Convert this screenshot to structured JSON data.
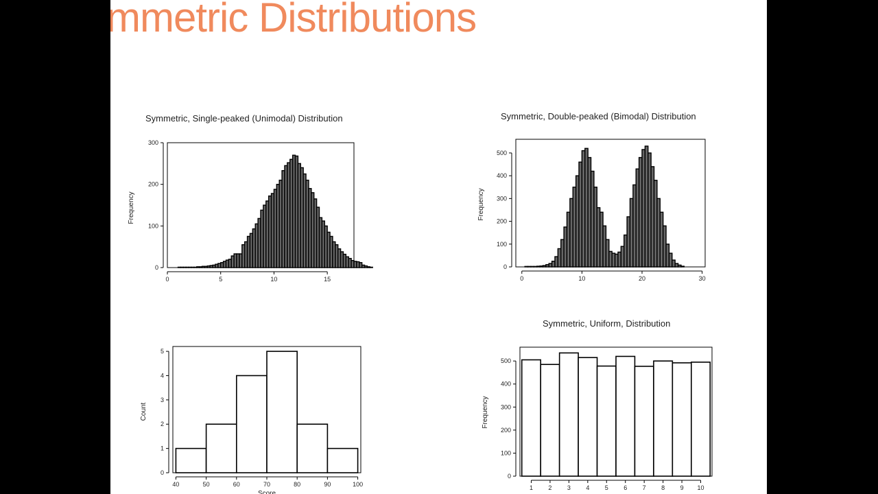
{
  "slide": {
    "title": "mmetric Distributions"
  },
  "chart_data": [
    {
      "type": "bar",
      "id": "unimodal",
      "title": "Symmetric, Single-peaked (Unimodal) Distribution",
      "xlabel": "",
      "ylabel": "Frequency",
      "xlim": [
        0,
        17.5
      ],
      "ylim": [
        0,
        300
      ],
      "xticks": [
        0,
        5,
        10,
        15
      ],
      "yticks": [
        0,
        100,
        200,
        300
      ],
      "bin_start": 1.0,
      "bin_width": 0.25,
      "fill": "#666666",
      "values": [
        1,
        1,
        1,
        1,
        1,
        1,
        1,
        2,
        2,
        3,
        3,
        4,
        5,
        6,
        8,
        10,
        12,
        15,
        18,
        20,
        28,
        33,
        33,
        33,
        55,
        62,
        75,
        82,
        93,
        105,
        118,
        138,
        150,
        160,
        172,
        178,
        188,
        200,
        210,
        233,
        245,
        252,
        260,
        270,
        268,
        250,
        240,
        225,
        210,
        190,
        180,
        165,
        145,
        120,
        112,
        100,
        85,
        75,
        62,
        55,
        45,
        38,
        32,
        26,
        22,
        17,
        15,
        14,
        12,
        6,
        4,
        2,
        1
      ]
    },
    {
      "type": "bar",
      "id": "bimodal",
      "title": "Symmetric, Double-peaked (Bimodal) Distribution",
      "xlabel": "",
      "ylabel": "Frequency",
      "xlim": [
        -1,
        30.5
      ],
      "ylim": [
        0,
        560
      ],
      "xticks": [
        0,
        10,
        20,
        30
      ],
      "yticks": [
        0,
        100,
        200,
        300,
        400,
        500
      ],
      "bin_start": 0.5,
      "bin_width": 0.5,
      "fill": "#666666",
      "values": [
        2,
        2,
        2,
        2,
        3,
        4,
        6,
        10,
        15,
        25,
        45,
        80,
        120,
        175,
        240,
        300,
        350,
        400,
        460,
        510,
        520,
        480,
        420,
        350,
        260,
        240,
        180,
        120,
        68,
        60,
        56,
        65,
        90,
        140,
        220,
        300,
        360,
        430,
        480,
        515,
        530,
        500,
        440,
        380,
        300,
        240,
        180,
        100,
        60,
        30,
        15,
        8,
        3
      ]
    },
    {
      "type": "bar",
      "id": "score",
      "title": "",
      "xlabel": "Score",
      "ylabel": "Count",
      "xlim": [
        39,
        101
      ],
      "ylim": [
        0,
        5.2
      ],
      "xticks": [
        40,
        50,
        60,
        70,
        80,
        90,
        100
      ],
      "yticks": [
        0,
        1,
        2,
        3,
        4,
        5
      ],
      "bin_start": 40,
      "bin_width": 10,
      "fill": "#ffffff",
      "values": [
        1,
        2,
        4,
        5,
        2,
        1
      ]
    },
    {
      "type": "bar",
      "id": "uniform",
      "title": "Symmetric, Uniform, Distribution",
      "xlabel": "",
      "ylabel": "Frequency",
      "xlim": [
        0.4,
        10.6
      ],
      "ylim": [
        0,
        560
      ],
      "xticks": [
        1,
        2,
        3,
        4,
        5,
        6,
        7,
        8,
        9,
        10
      ],
      "yticks": [
        0,
        100,
        200,
        300,
        400,
        500
      ],
      "bin_start": 0.5,
      "bin_width": 1,
      "fill": "#ffffff",
      "values": [
        505,
        485,
        535,
        515,
        478,
        520,
        477,
        500,
        492,
        495
      ]
    }
  ]
}
